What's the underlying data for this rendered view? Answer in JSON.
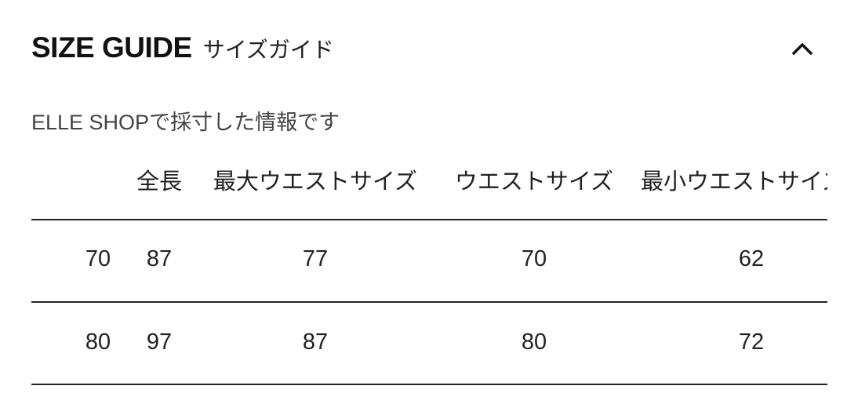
{
  "header": {
    "title_en": "SIZE GUIDE",
    "title_ja": "サイズガイド",
    "collapse_icon": "chevron-up-icon"
  },
  "subtitle": "ELLE SHOPで採寸した情報です",
  "table": {
    "columns": [
      "",
      "全長",
      "最大ウエストサイズ",
      "ウエストサイズ",
      "最小ウエストサイズ"
    ],
    "rows": [
      [
        "70",
        "87",
        "77",
        "70",
        "62"
      ],
      [
        "80",
        "97",
        "87",
        "80",
        "72"
      ]
    ]
  }
}
